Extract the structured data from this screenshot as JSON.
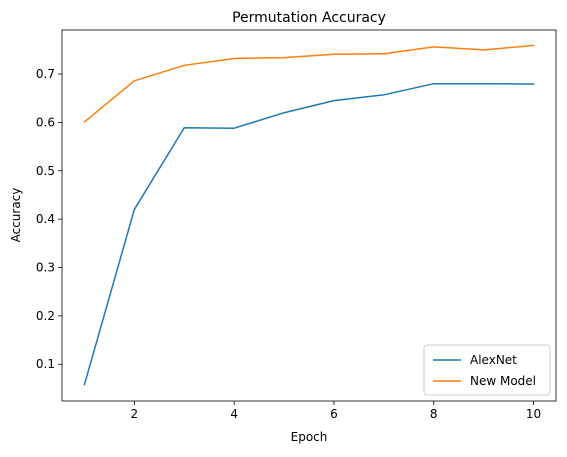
{
  "chart_data": {
    "type": "line",
    "title": "Permutation Accuracy",
    "xlabel": "Epoch",
    "ylabel": "Accuracy",
    "x": [
      1,
      2,
      3,
      4,
      5,
      6,
      7,
      8,
      9,
      10
    ],
    "xlim": [
      0.55,
      10.45
    ],
    "ylim": [
      0.024,
      0.791
    ],
    "xticks": [
      2,
      4,
      6,
      8,
      10
    ],
    "yticks": [
      0.1,
      0.2,
      0.3,
      0.4,
      0.5,
      0.6,
      0.7
    ],
    "xtick_labels": [
      "2",
      "4",
      "6",
      "8",
      "10"
    ],
    "ytick_labels": [
      "0.1",
      "0.2",
      "0.3",
      "0.4",
      "0.5",
      "0.6",
      "0.7"
    ],
    "grid": false,
    "legend_position": "bottom-right",
    "series": [
      {
        "name": "AlexNet",
        "color": "#1f77b4",
        "values": [
          0.058,
          0.42,
          0.589,
          0.588,
          0.62,
          0.645,
          0.657,
          0.68,
          0.68,
          0.679
        ]
      },
      {
        "name": "New Model",
        "color": "#ff7f0e",
        "values": [
          0.601,
          0.686,
          0.718,
          0.732,
          0.734,
          0.741,
          0.742,
          0.756,
          0.75,
          0.759
        ]
      }
    ]
  }
}
